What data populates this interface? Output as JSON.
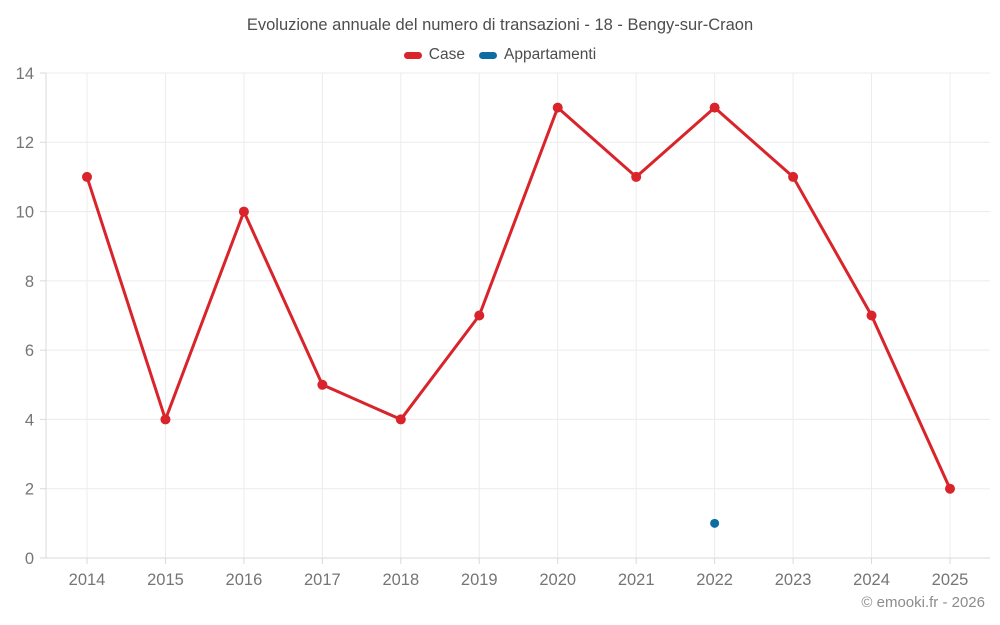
{
  "title": "Evoluzione annuale del numero di transazioni - 18 - Bengy-sur-Craon",
  "legend": {
    "items": [
      {
        "label": "Case",
        "color": "#d8242a"
      },
      {
        "label": "Appartamenti",
        "color": "#0d6ca0"
      }
    ]
  },
  "footer": {
    "credit": "© emooki.fr - 2026"
  },
  "colors": {
    "grid": "#ececec",
    "axis": "#d9d9d9",
    "tick_label": "#757575",
    "title_text": "#4d4d4d",
    "footer_text": "#8c8c8c"
  },
  "chart_data": {
    "type": "line",
    "title": "Evoluzione annuale del numero di transazioni - 18 - Bengy-sur-Craon",
    "categories": [
      "2014",
      "2015",
      "2016",
      "2017",
      "2018",
      "2019",
      "2020",
      "2021",
      "2022",
      "2023",
      "2024",
      "2025"
    ],
    "series": [
      {
        "name": "Case",
        "color": "#d8242a",
        "type": "line",
        "marker_radius": 5,
        "line_width": 3,
        "values": [
          11,
          4,
          10,
          5,
          4,
          7,
          13,
          11,
          13,
          11,
          7,
          2
        ]
      },
      {
        "name": "Appartamenti",
        "color": "#0d6ca0",
        "type": "line",
        "marker_radius": 4.5,
        "line_width": 3,
        "values": [
          null,
          null,
          null,
          null,
          null,
          null,
          null,
          null,
          1,
          null,
          null,
          null
        ]
      }
    ],
    "xlabel": "",
    "ylabel": "",
    "ylim": [
      0,
      14
    ],
    "ytick_step": 2,
    "yticks": [
      0,
      2,
      4,
      6,
      8,
      10,
      12,
      14
    ],
    "grid": true,
    "legend_position": "top"
  }
}
